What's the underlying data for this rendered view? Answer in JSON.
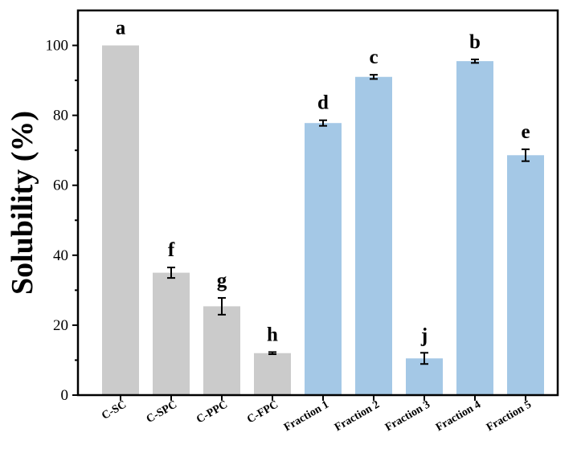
{
  "chart_data": {
    "type": "bar",
    "title": "",
    "xlabel": "",
    "ylabel": "Solubility (%)",
    "ylim": [
      0,
      110
    ],
    "yticks": [
      0,
      20,
      40,
      60,
      80,
      100
    ],
    "grid": false,
    "categories": [
      "C-SC",
      "C-SPC",
      "C-PPC",
      "C-FPC",
      "Fraction 1",
      "Fraction 2",
      "Fraction 3",
      "Fraction 4",
      "Fraction 5"
    ],
    "values": [
      100,
      35.0,
      25.4,
      12.0,
      77.8,
      91.0,
      10.5,
      95.5,
      68.6
    ],
    "errors": [
      0,
      1.5,
      2.4,
      0.3,
      0.8,
      0.6,
      1.6,
      0.5,
      1.7
    ],
    "significance_letters": [
      "a",
      "f",
      "g",
      "h",
      "d",
      "c",
      "j",
      "b",
      "e"
    ],
    "bar_colors": [
      "#cbcbcb",
      "#cbcbcb",
      "#cbcbcb",
      "#cbcbcb",
      "#a4c8e6",
      "#a4c8e6",
      "#a4c8e6",
      "#a4c8e6",
      "#a4c8e6"
    ]
  }
}
